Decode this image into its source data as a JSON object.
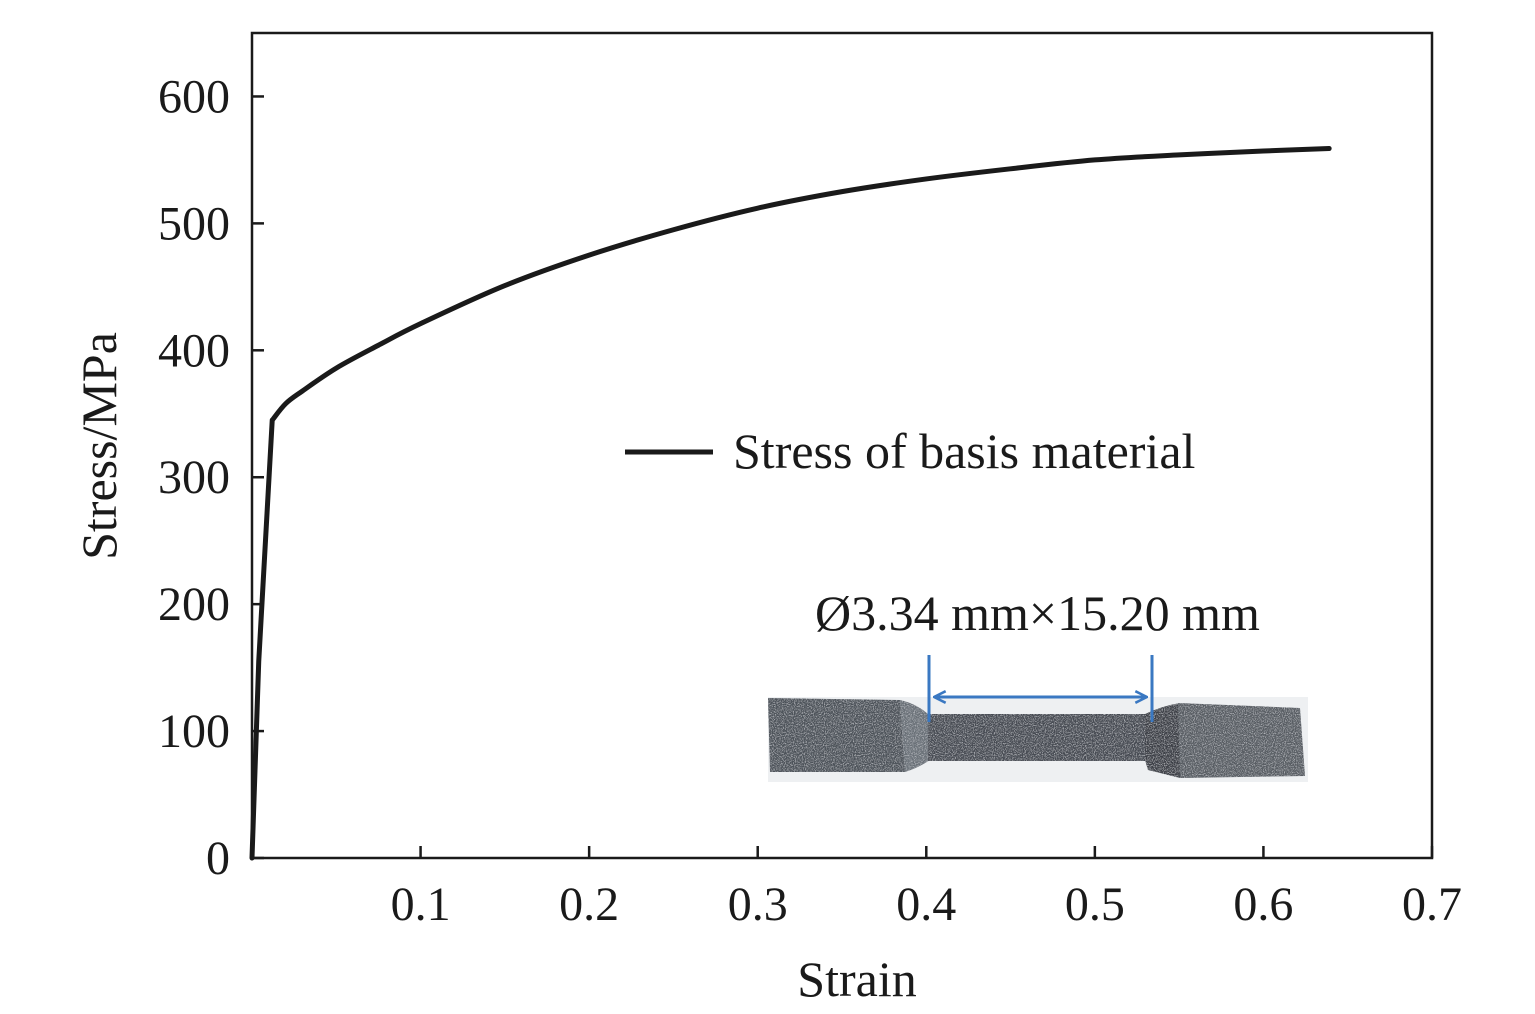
{
  "chart_data": {
    "type": "line",
    "title": "",
    "xlabel": "Strain",
    "ylabel": "Stress/MPa",
    "xlim": [
      0,
      0.7
    ],
    "ylim": [
      0,
      650
    ],
    "grid": false,
    "x_ticks": [
      0.1,
      0.2,
      0.3,
      0.4,
      0.5,
      0.6,
      0.7
    ],
    "x_tick_labels": [
      "0.1",
      "0.2",
      "0.3",
      "0.4",
      "0.5",
      "0.6",
      "0.7"
    ],
    "y_ticks": [
      0,
      100,
      200,
      300,
      400,
      500,
      600
    ],
    "y_tick_labels": [
      "0",
      "100",
      "200",
      "300",
      "400",
      "500",
      "600"
    ],
    "legend_position": "center-right",
    "series": [
      {
        "name": "Stress of basis material",
        "color": "#1a1a1a",
        "x": [
          0,
          0.004,
          0.012,
          0.02,
          0.03,
          0.05,
          0.075,
          0.1,
          0.15,
          0.2,
          0.25,
          0.3,
          0.35,
          0.4,
          0.45,
          0.5,
          0.55,
          0.6,
          0.639
        ],
        "y": [
          0,
          155,
          345,
          358,
          368,
          386,
          404,
          421,
          451,
          475,
          495,
          512,
          525,
          535,
          543,
          550,
          554,
          557,
          559
        ]
      }
    ],
    "annotations": [
      {
        "text": "Ø3.34 mm×15.20 mm"
      }
    ]
  },
  "colors": {
    "axis": "#1a1a1a",
    "dimension_line": "#3a78c2"
  }
}
